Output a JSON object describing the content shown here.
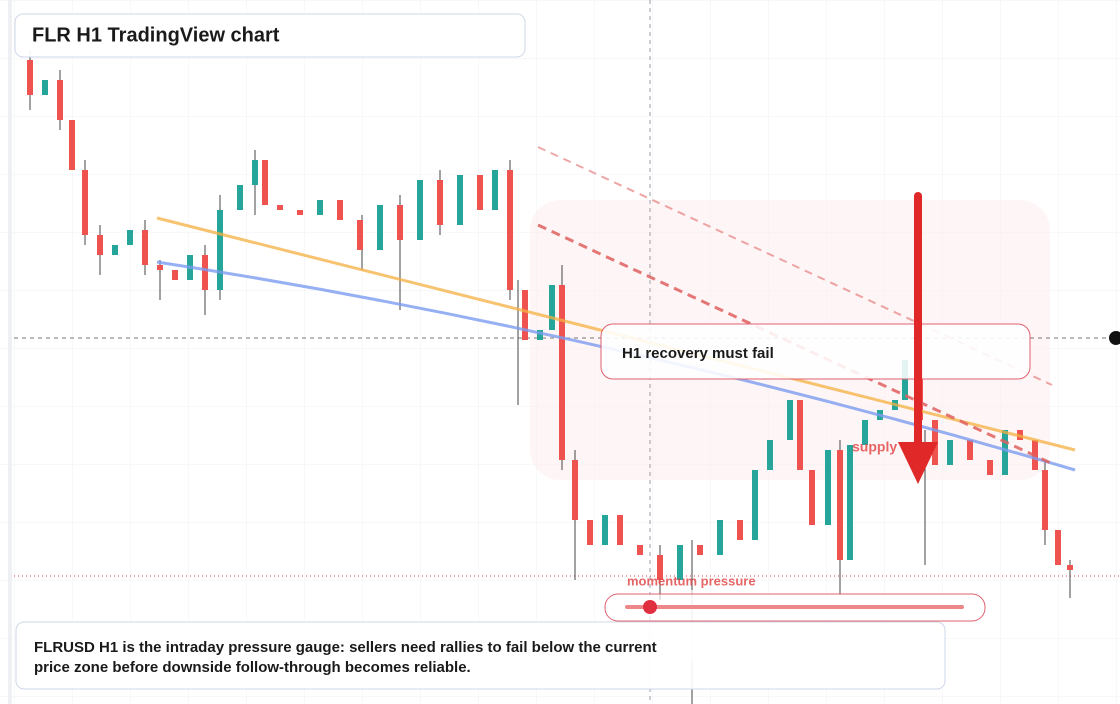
{
  "header": {
    "title": "FLR H1 TradingView chart"
  },
  "annotations": {
    "recovery": "H1 recovery must fail",
    "supply": "supply",
    "momentum": "momentum pressure"
  },
  "caption": {
    "lines": [
      "FLRUSD H1 is the intraday pressure gauge: sellers need rallies to fail below the current",
      "price zone before downside follow-through becomes reliable."
    ]
  }
}
